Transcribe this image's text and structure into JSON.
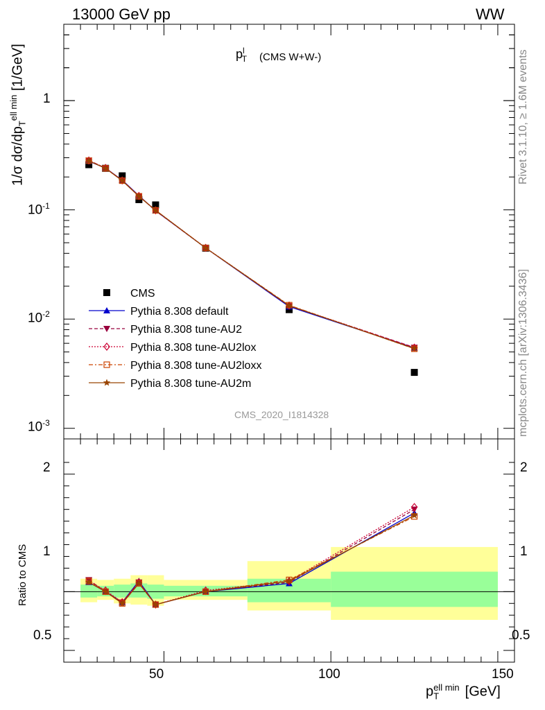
{
  "header": {
    "energy_label": "13000 GeV pp",
    "process_label": "WW",
    "observable_label": "(CMS W+W-)",
    "analysis_id": "CMS_2020_I1814328"
  },
  "side_text": {
    "rivet": "Rivet 3.1.10, ≥ 1.6M events",
    "mcplots": "mcplots.cern.ch [arXiv:1306.3436]"
  },
  "axes": {
    "ylabel_main": "1/σ dσ/dp",
    "ylabel_main_unit": "[1/GeV]",
    "ylabel_ratio": "Ratio to CMS",
    "xlabel_unit": "[GeV]",
    "main_ticks": [
      "1",
      "10",
      "10",
      "10"
    ],
    "main_tick_exps": [
      "",
      "-1",
      "-2",
      "-3"
    ],
    "ratio_ticks": [
      "2",
      "1",
      "0.5"
    ],
    "x_ticks": [
      "50",
      "100",
      "150"
    ]
  },
  "colors": {
    "data": "#000000",
    "default": "#0000cc",
    "au2": "#99003d",
    "au2lox": "#cc0033",
    "au2loxx": "#cc4400",
    "au2m": "#994400",
    "band_inner": "#99ff99",
    "band_outer": "#ffff99"
  },
  "chart_data": [
    {
      "type": "scatter",
      "panel": "main",
      "y_scale": "log",
      "xlim": [
        20,
        155
      ],
      "ylim": [
        0.0008,
        5
      ],
      "legend_position": "lower-left",
      "x": [
        27.5,
        32.5,
        37.5,
        42.5,
        47.5,
        62.5,
        87.5,
        125
      ],
      "x_edges": [
        25,
        30,
        35,
        40,
        45,
        50,
        75,
        100,
        150
      ],
      "series": [
        {
          "name": "CMS",
          "marker": "square",
          "values": [
            0.259,
            0.24,
            0.205,
            0.124,
            0.111,
            0.0446,
            0.0122,
            0.00325
          ]
        },
        {
          "name": "Pythia 8.308 default",
          "marker": "triangle-up",
          "line": "solid",
          "values": [
            0.279,
            0.241,
            0.187,
            0.135,
            0.098,
            0.0448,
            0.013,
            0.00545
          ]
        },
        {
          "name": "Pythia 8.308 tune-AU2",
          "marker": "triangle-down",
          "line": "dashed",
          "values": [
            0.284,
            0.241,
            0.186,
            0.134,
            0.098,
            0.0447,
            0.0132,
            0.0055
          ]
        },
        {
          "name": "Pythia 8.308 tune-AU2lox",
          "marker": "diamond",
          "line": "dotted",
          "values": [
            0.283,
            0.242,
            0.186,
            0.134,
            0.099,
            0.0449,
            0.0133,
            0.00548
          ]
        },
        {
          "name": "Pythia 8.308 tune-AU2loxx",
          "marker": "open-square",
          "line": "dashdot",
          "values": [
            0.282,
            0.24,
            0.185,
            0.133,
            0.099,
            0.0448,
            0.0134,
            0.00535
          ]
        },
        {
          "name": "Pythia 8.308 tune-AU2m",
          "marker": "star",
          "line": "solid",
          "values": [
            0.281,
            0.24,
            0.185,
            0.133,
            0.099,
            0.0448,
            0.0133,
            0.00537
          ]
        }
      ]
    },
    {
      "type": "line",
      "panel": "ratio",
      "title": "Ratio to CMS",
      "xlim": [
        20,
        155
      ],
      "ylim": [
        0.4,
        2.3
      ],
      "x": [
        27.5,
        32.5,
        37.5,
        42.5,
        47.5,
        62.5,
        87.5,
        125
      ],
      "bands": {
        "x_edges": [
          25,
          30,
          35,
          40,
          45,
          50,
          75,
          100,
          150
        ],
        "inner_low": [
          0.95,
          0.96,
          0.95,
          0.95,
          0.94,
          0.96,
          0.91,
          0.87
        ],
        "inner_high": [
          1.06,
          1.05,
          1.06,
          1.07,
          1.06,
          1.05,
          1.11,
          1.17
        ],
        "outer_low": [
          0.91,
          0.93,
          0.9,
          0.89,
          0.88,
          0.93,
          0.84,
          0.76
        ],
        "outer_high": [
          1.11,
          1.1,
          1.11,
          1.14,
          1.14,
          1.1,
          1.26,
          1.38
        ]
      },
      "series": [
        {
          "name": "Pythia 8.308 default",
          "values": [
            1.08,
            1.0,
            0.91,
            1.09,
            0.89,
            1.0,
            1.07,
            1.67
          ]
        },
        {
          "name": "Pythia 8.308 tune-AU2",
          "values": [
            1.1,
            1.0,
            0.91,
            1.08,
            0.89,
            1.0,
            1.08,
            1.7
          ]
        },
        {
          "name": "Pythia 8.308 tune-AU2lox",
          "values": [
            1.09,
            1.01,
            0.91,
            1.08,
            0.89,
            1.01,
            1.09,
            1.72
          ]
        },
        {
          "name": "Pythia 8.308 tune-AU2loxx",
          "values": [
            1.09,
            1.0,
            0.9,
            1.07,
            0.89,
            1.0,
            1.1,
            1.64
          ]
        },
        {
          "name": "Pythia 8.308 tune-AU2m",
          "values": [
            1.08,
            1.0,
            0.9,
            1.07,
            0.89,
            1.0,
            1.09,
            1.65
          ]
        }
      ]
    }
  ]
}
